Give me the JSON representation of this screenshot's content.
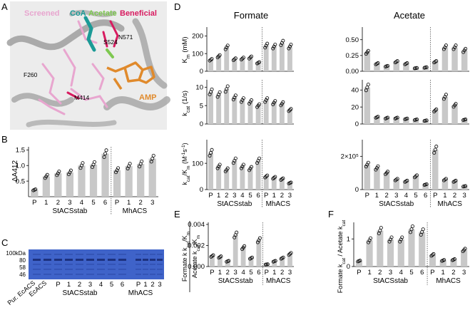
{
  "panel_labels": {
    "A": "A",
    "B": "B",
    "C": "C",
    "D": "D",
    "E": "E",
    "F": "F"
  },
  "panel_a": {
    "legend": {
      "screened": "Screened",
      "coa": "CoA",
      "acetate": "Acetate",
      "beneficial": "Beneficial"
    },
    "residues": {
      "r1": "N571",
      "r2": "S524",
      "r3": "F260",
      "r4": "M414"
    },
    "ligand": "AMP",
    "colors": {
      "screened": "#e8a6cf",
      "coa": "#1b9a96",
      "acetate": "#7ec850",
      "beneficial": "#d81b60",
      "amp": "#e08a2c",
      "protein": "#9a9a9a"
    }
  },
  "groups": {
    "st": "StACSstab",
    "mh": "MhACS"
  },
  "categories": [
    "P",
    "1",
    "2",
    "3",
    "4",
    "5",
    "6",
    "P",
    "1",
    "2",
    "3"
  ],
  "panel_c": {
    "ladder_unit": "100kDa",
    "ladder_marks": [
      "80",
      "58",
      "46"
    ],
    "lane_labels": [
      "Pur. EcACS",
      "EcACS"
    ],
    "st_lanes": [
      "P",
      "1",
      "2",
      "3",
      "4",
      "5",
      "6"
    ],
    "mh_lanes": [
      "P",
      "1",
      "2",
      "3"
    ]
  },
  "panel_d": {
    "col_formate": "Formate",
    "col_acetate": "Acetate",
    "ylabel_km": "K",
    "ylabel_km_sub": "m",
    "ylabel_km_unit": " (mM)",
    "ylabel_kcat": "k",
    "ylabel_kcat_sub": "cat",
    "ylabel_kcat_unit": " (1/s)",
    "ylabel_eff": "k",
    "ylabel_eff_sub1": "cat",
    "ylabel_eff_mid": "/K",
    "ylabel_eff_sub2": "m",
    "ylabel_eff_unit": " (M",
    "ylabel_eff_sup": "-1",
    "ylabel_eff_end": "s",
    "ylabel_eff_sup2": "-1",
    "ylabel_eff_close": ")"
  },
  "panel_e": {
    "ylabel_num": "Formate k",
    "ylabel_den": "Acetate k"
  },
  "panel_f": {
    "ylabel": "Formate k",
    "ylabel2": " / Acetate k",
    "ylabel_sub": "cat"
  },
  "chart_data": [
    {
      "id": "B",
      "type": "bar",
      "ylabel": "ΔA412",
      "categories": [
        "P",
        "1",
        "2",
        "3",
        "4",
        "5",
        "6",
        "P",
        "1",
        "2",
        "3"
      ],
      "values": [
        0.22,
        0.65,
        0.75,
        0.78,
        1.0,
        1.03,
        1.38,
        0.85,
        0.98,
        1.05,
        1.22
      ],
      "ylim": [
        0,
        1.6
      ],
      "yticks": [
        0.5,
        1.0,
        1.5
      ],
      "ytick_labels": [
        "0.5",
        "1.0",
        "1.5"
      ]
    },
    {
      "id": "D-formate-km",
      "type": "bar",
      "categories": [
        "P",
        "1",
        "2",
        "3",
        "4",
        "5",
        "6",
        "P",
        "1",
        "2",
        "3"
      ],
      "values": [
        65,
        85,
        135,
        68,
        72,
        78,
        48,
        145,
        140,
        160,
        140
      ],
      "ylim": [
        0,
        250
      ],
      "yticks": [
        0,
        100,
        200
      ],
      "ytick_labels": [
        "0",
        "100",
        "200"
      ]
    },
    {
      "id": "D-formate-kcat",
      "type": "bar",
      "categories": [
        "P",
        "1",
        "2",
        "3",
        "4",
        "5",
        "6",
        "P",
        "1",
        "2",
        "3"
      ],
      "values": [
        8.7,
        8.0,
        9.5,
        7.2,
        6.5,
        6.0,
        5.0,
        6.5,
        5.8,
        5.5,
        3.8
      ],
      "ylim": [
        0,
        12
      ],
      "yticks": [
        0,
        5,
        10
      ],
      "ytick_labels": [
        "0",
        "5",
        "10"
      ]
    },
    {
      "id": "D-formate-eff",
      "type": "bar",
      "categories": [
        "P",
        "1",
        "2",
        "3",
        "4",
        "5",
        "6",
        "P",
        "1",
        "2",
        "3"
      ],
      "values": [
        140,
        88,
        75,
        110,
        88,
        80,
        110,
        50,
        45,
        40,
        25
      ],
      "ylim": [
        0,
        190
      ],
      "yticks": [
        0,
        100
      ],
      "ytick_labels": [
        "0",
        "100"
      ]
    },
    {
      "id": "D-acetate-km",
      "type": "bar",
      "categories": [
        "P",
        "1",
        "2",
        "3",
        "4",
        "5",
        "6",
        "P",
        "1",
        "2",
        "3"
      ],
      "values": [
        0.3,
        0.12,
        0.08,
        0.15,
        0.12,
        0.05,
        0.06,
        0.15,
        0.38,
        0.38,
        0.33
      ],
      "ylim": [
        0,
        0.7
      ],
      "yticks": [
        0,
        0.25,
        0.5
      ],
      "ytick_labels": [
        "0.00",
        "0.25",
        "0.50"
      ]
    },
    {
      "id": "D-acetate-kcat",
      "type": "bar",
      "categories": [
        "P",
        "1",
        "2",
        "3",
        "4",
        "5",
        "6",
        "P",
        "1",
        "2",
        "3"
      ],
      "values": [
        43,
        8,
        7,
        7,
        6,
        5,
        4,
        16,
        32,
        22,
        5
      ],
      "ylim": [
        0,
        52
      ],
      "yticks": [
        0,
        20,
        40
      ],
      "ytick_labels": [
        "0",
        "20",
        "40"
      ]
    },
    {
      "id": "D-acetate-eff",
      "type": "bar",
      "categories": [
        "P",
        "1",
        "2",
        "3",
        "4",
        "5",
        "6",
        "P",
        "1",
        "2",
        "3"
      ],
      "values": [
        150000,
        130000,
        100000,
        60000,
        50000,
        80000,
        30000,
        240000,
        60000,
        50000,
        20000
      ],
      "ylim": [
        0,
        300000
      ],
      "yticks": [
        0,
        200000
      ],
      "ytick_labels": [
        "0",
        "2×10⁵"
      ]
    },
    {
      "id": "E",
      "type": "bar",
      "categories": [
        "P",
        "1",
        "2",
        "3",
        "4",
        "5",
        "6",
        "P",
        "1",
        "2",
        "3"
      ],
      "values": [
        0.001,
        0.0009,
        0.0005,
        0.003,
        0.0018,
        0.0008,
        0.0025,
        0.0002,
        0.0005,
        0.0008,
        0.0012
      ],
      "ylim": [
        0,
        0.0042
      ],
      "yticks": [
        0,
        0.002,
        0.004
      ],
      "ytick_labels": [
        "0.000",
        "0.002",
        "0.004"
      ]
    },
    {
      "id": "F",
      "type": "bar",
      "categories": [
        "P",
        "1",
        "2",
        "3",
        "4",
        "5",
        "6",
        "P",
        "1",
        "2",
        "3"
      ],
      "values": [
        0.2,
        0.95,
        1.3,
        0.98,
        0.98,
        1.35,
        1.25,
        0.42,
        0.22,
        0.25,
        0.6
      ],
      "ylim": [
        0,
        1.6
      ],
      "yticks": [
        0,
        1
      ],
      "ytick_labels": [
        "0",
        "1"
      ]
    }
  ]
}
